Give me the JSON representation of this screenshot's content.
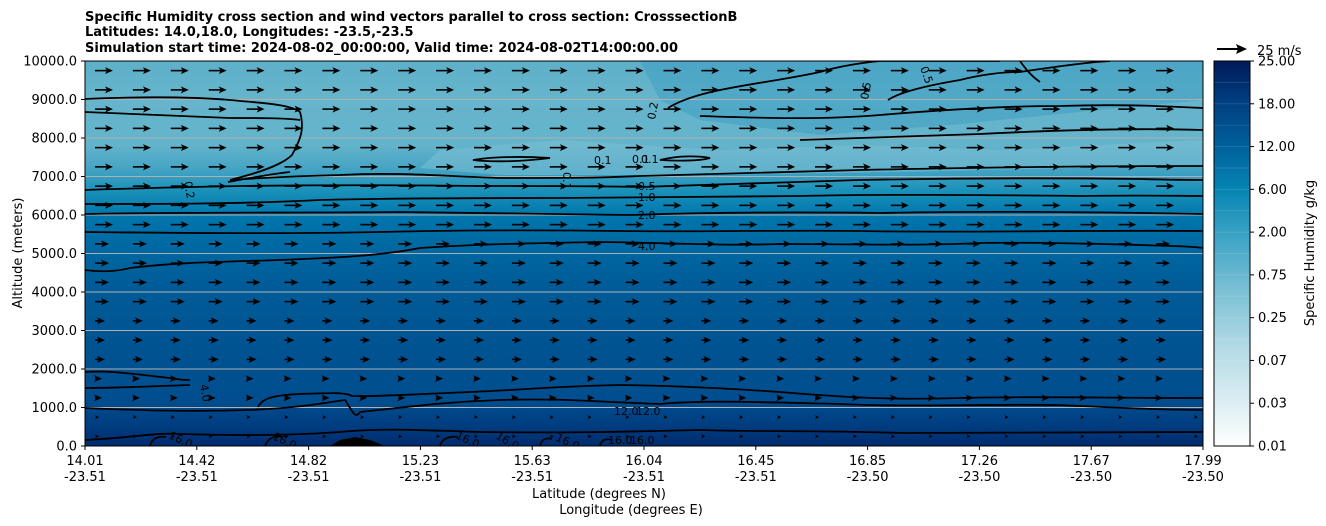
{
  "chart_data": {
    "type": "heatmap",
    "title_lines": [
      "Specific Humidity cross section and wind vectors parallel to cross section: CrosssectionB",
      "Latitudes: 14.0,18.0, Longitudes: -23.5,-23.5",
      "Simulation start time: 2024-08-02_00:00:00, Valid time: 2024-08-02T14:00:00.00"
    ],
    "xlabel": "Latitude (degrees N)",
    "xlabel2": "Longitude (degrees E)",
    "ylabel": "Altitude (meters)",
    "colorbar_label": "Specific Humidity g/kg",
    "quiver_key": "25 m/s",
    "x_ticks": [
      {
        "lat": "14.01",
        "lon": "-23.51"
      },
      {
        "lat": "14.42",
        "lon": "-23.51"
      },
      {
        "lat": "14.82",
        "lon": "-23.51"
      },
      {
        "lat": "15.23",
        "lon": "-23.51"
      },
      {
        "lat": "15.63",
        "lon": "-23.51"
      },
      {
        "lat": "16.04",
        "lon": "-23.51"
      },
      {
        "lat": "16.45",
        "lon": "-23.51"
      },
      {
        "lat": "16.85",
        "lon": "-23.50"
      },
      {
        "lat": "17.26",
        "lon": "-23.50"
      },
      {
        "lat": "17.67",
        "lon": "-23.50"
      },
      {
        "lat": "17.99",
        "lon": "-23.50"
      }
    ],
    "y_ticks": [
      "0.0",
      "1000.0",
      "2000.0",
      "3000.0",
      "4000.0",
      "5000.0",
      "6000.0",
      "7000.0",
      "8000.0",
      "9000.0",
      "10000.0"
    ],
    "ylim": [
      0,
      10000
    ],
    "colorbar_ticks": [
      "0.01",
      "0.03",
      "0.07",
      "0.25",
      "0.75",
      "2.00",
      "6.00",
      "12.00",
      "18.00",
      "25.00"
    ],
    "grid": "horizontal",
    "contour_labels": [
      "0.1",
      "0.1",
      "0.1",
      "0.1",
      "0.2",
      "0.2",
      "0.5",
      "0.5",
      "0.5",
      "1.0",
      "2.0",
      "4.0",
      "4.0",
      "12.0",
      "12.0",
      "16.0",
      "16.0",
      "16.0",
      "16.0",
      "16.0",
      "16.0",
      "16.0"
    ],
    "humidity_profile": [
      {
        "altitude": 0,
        "value": 17
      },
      {
        "altitude": 500,
        "value": 14
      },
      {
        "altitude": 1000,
        "value": 12
      },
      {
        "altitude": 2000,
        "value": 10
      },
      {
        "altitude": 4000,
        "value": 7
      },
      {
        "altitude": 5000,
        "value": 4
      },
      {
        "altitude": 6000,
        "value": 2
      },
      {
        "altitude": 6500,
        "value": 1
      },
      {
        "altitude": 7000,
        "value": 0.5
      },
      {
        "altitude": 8000,
        "value": 0.2
      },
      {
        "altitude": 10000,
        "value": 0.2
      }
    ],
    "colors": {
      "darkest": "#002c6e",
      "dark": "#005a96",
      "mid": "#0583b2",
      "light": "#63b3cb",
      "pale": "#c5e4ec",
      "wind_arrow": "#000000",
      "grid": "#b0b0b0"
    }
  }
}
